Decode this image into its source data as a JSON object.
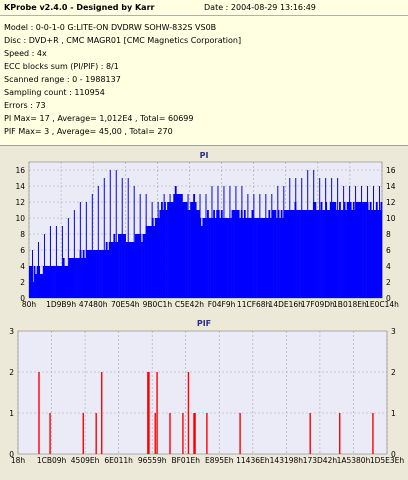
{
  "header": {
    "title": "KProbe v2.4.0 - Designed by Karr",
    "date": "Date : 2004-08-29 13:16:49",
    "lines": [
      "Model : 0-0-1-0 G:LITE-ON DVDRW SOHW-832S  VS0B",
      "Disc : DVD+R , CMC MAGR01 [CMC Magnetics Corporation]",
      "Speed : 4x",
      "ECC blocks sum (PI/PIF) : 8/1",
      "Scanned range : 0 - 1988137",
      "Sampling count : 110954",
      "Errors : 73",
      "PI Max= 17 , Average= 1,012E4 , Total= 60699",
      "PIF Max= 3 , Average= 45,00 , Total= 270"
    ]
  },
  "colors": {
    "panel_bg": "#ece9d8",
    "plot_bg": "#ebebf8",
    "grid": "#a6a6a6",
    "pi_fill": "#0000ff",
    "pif_fill": "#ff0000",
    "title": "#2d2d8a"
  },
  "chart_data": [
    {
      "type": "bar",
      "title": "PI",
      "ylim": [
        0,
        17
      ],
      "y_ticks": [
        "0",
        "2",
        "4",
        "6",
        "8",
        "10",
        "12",
        "14",
        "16"
      ],
      "x_ticks": [
        "80h",
        "1D9B9h",
        "47480h",
        "70E54h",
        "9B0C1h",
        "C5E42h",
        "F04F9h",
        "11CF68h",
        "14DE16h",
        "17F09Dh",
        "1B018Eh",
        "1E0C14h"
      ],
      "grid": true,
      "series": [
        {
          "values": [
            4,
            4,
            2,
            4,
            3,
            4,
            4,
            3,
            3,
            4,
            4,
            4,
            4,
            4,
            4,
            4,
            4,
            4,
            4,
            4,
            4,
            4,
            5,
            4,
            4,
            4,
            5,
            5,
            5,
            5,
            5,
            5,
            5,
            6,
            5,
            6,
            5,
            6,
            6,
            6,
            6,
            6,
            6,
            6,
            6,
            6,
            6,
            6,
            6,
            6,
            7,
            6,
            7,
            7,
            7,
            8,
            7,
            7,
            8,
            8,
            8,
            8,
            8,
            7,
            7,
            7,
            7,
            7,
            7,
            8,
            8,
            8,
            8,
            7,
            8,
            8,
            9,
            9,
            9,
            9,
            10,
            9,
            10,
            10,
            10,
            11,
            12,
            11,
            12,
            11,
            12,
            12,
            12,
            12,
            13,
            14,
            13,
            13,
            13,
            13,
            12,
            12,
            12,
            11,
            11,
            12,
            12,
            13,
            12,
            11,
            11,
            10,
            9,
            10,
            10,
            10,
            11,
            10,
            10,
            10,
            11,
            10,
            11,
            11,
            10,
            11,
            10,
            10,
            10,
            10,
            10,
            10,
            11,
            11,
            11,
            11,
            11,
            10,
            11,
            10,
            11,
            10,
            10,
            10,
            10,
            11,
            10,
            10,
            10,
            10,
            10,
            10,
            10,
            10,
            10,
            10,
            11,
            10,
            11,
            11,
            11,
            10,
            11,
            10,
            11,
            10,
            11,
            11,
            11,
            11,
            11,
            11,
            11,
            12,
            11,
            11,
            11,
            11,
            11,
            11,
            11,
            11,
            11,
            11,
            11,
            12,
            12,
            11,
            11,
            11,
            12,
            11,
            11,
            12,
            11,
            11,
            12,
            12,
            12,
            12,
            11,
            11,
            12,
            11,
            11,
            12,
            11,
            12,
            12,
            12,
            11,
            12,
            11,
            12,
            12,
            12,
            12,
            12,
            12,
            12,
            12,
            11,
            12,
            11,
            11,
            11,
            12,
            11,
            11,
            12
          ],
          "peaks": [
            6,
            7,
            8,
            9,
            9,
            9,
            10,
            11,
            12,
            12,
            13,
            14,
            15,
            16,
            16,
            15,
            15,
            14,
            13,
            13,
            12,
            12,
            13,
            13,
            13,
            13,
            13,
            13,
            13,
            13,
            14,
            14,
            14,
            14,
            14,
            14,
            13,
            13,
            13,
            13,
            13,
            14,
            14,
            15,
            15,
            15,
            16,
            16,
            15,
            15,
            15,
            15,
            14,
            14,
            14,
            14,
            14,
            14,
            14
          ]
        }
      ]
    },
    {
      "type": "bar",
      "title": "PIF",
      "ylim": [
        0,
        3
      ],
      "y_ticks": [
        "0",
        "1",
        "2",
        "3"
      ],
      "x_ticks": [
        "18h",
        "1CB09h",
        "4509Eh",
        "6E011h",
        "96559h",
        "BF01Eh",
        "E895Eh",
        "11436Eh",
        "143198h",
        "173D42h",
        "1A5380h",
        "1D5E3Eh"
      ],
      "grid": true,
      "series": [
        {
          "x": [
            0.055,
            0.085,
            0.175,
            0.21,
            0.225,
            0.35,
            0.353,
            0.37,
            0.375,
            0.41,
            0.445,
            0.46,
            0.475,
            0.478,
            0.51,
            0.6,
            0.79,
            0.87,
            0.96
          ],
          "values": [
            2,
            1,
            1,
            1,
            2,
            2,
            2,
            1,
            2,
            1,
            1,
            2,
            1,
            1,
            1,
            1,
            1,
            1,
            1
          ]
        }
      ]
    }
  ]
}
